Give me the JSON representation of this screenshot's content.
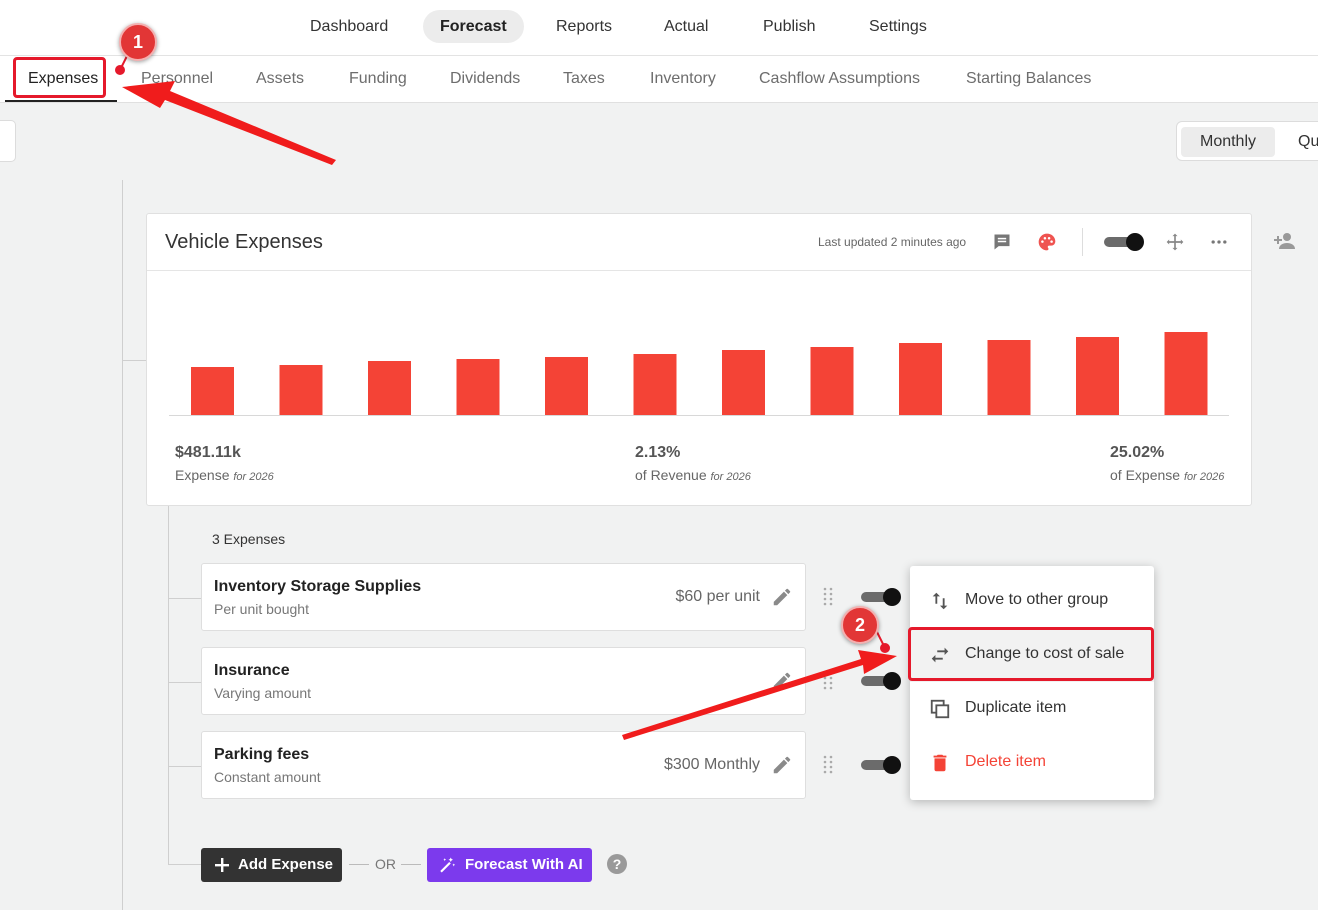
{
  "top_nav": [
    "Dashboard",
    "Forecast",
    "Reports",
    "Actual",
    "Publish",
    "Settings"
  ],
  "top_nav_active": "Forecast",
  "sub_nav": [
    "Expenses",
    "Personnel",
    "Assets",
    "Funding",
    "Dividends",
    "Taxes",
    "Inventory",
    "Cashflow Assumptions",
    "Starting Balances"
  ],
  "sub_nav_active": "Expenses",
  "period": {
    "monthly": "Monthly",
    "second": "Qu"
  },
  "card": {
    "title": "Vehicle Expenses",
    "last_updated": "Last updated 2 minutes ago",
    "stats": [
      {
        "value": "$481.11k",
        "label": "Expense",
        "note": "for 2026"
      },
      {
        "value": "2.13%",
        "label": "of Revenue",
        "note": "for 2026"
      },
      {
        "value": "25.02%",
        "label": "of Expense",
        "note": "for 2026"
      }
    ]
  },
  "chart_data": {
    "type": "bar",
    "categories": [
      "",
      "",
      "",
      "",
      "",
      "",
      "",
      "",
      "",
      "",
      "",
      ""
    ],
    "values": [
      48,
      50,
      54,
      56,
      58,
      61,
      65,
      68,
      72,
      75,
      78,
      83
    ],
    "color": "#f44336",
    "ylim": [
      0,
      100
    ],
    "grid": false,
    "title": "",
    "xlabel": "",
    "ylabel": ""
  },
  "expenses": {
    "count_label": "3 Expenses",
    "items": [
      {
        "name": "Inventory Storage Supplies",
        "sub": "Per unit bought",
        "amount": "$60 per unit"
      },
      {
        "name": "Insurance",
        "sub": "Varying amount",
        "amount": ""
      },
      {
        "name": "Parking fees",
        "sub": "Constant amount",
        "amount": "$300 Monthly"
      }
    ]
  },
  "context_menu": {
    "items": [
      {
        "label": "Move to other group",
        "icon": "swap-vertical-icon"
      },
      {
        "label": "Change to cost of sale",
        "icon": "swap-horizontal-icon"
      },
      {
        "label": "Duplicate item",
        "icon": "duplicate-icon"
      },
      {
        "label": "Delete item",
        "icon": "trash-icon"
      }
    ]
  },
  "buttons": {
    "add_expense": "Add Expense",
    "or": "OR",
    "forecast_ai": "Forecast With AI",
    "help": "?"
  },
  "annotations": {
    "step1": "1",
    "step2": "2"
  },
  "colors": {
    "accent_red": "#f44336",
    "annotation_red": "#e5192b",
    "ai_purple": "#7c3aed",
    "palette_icon": "#ef5350"
  }
}
